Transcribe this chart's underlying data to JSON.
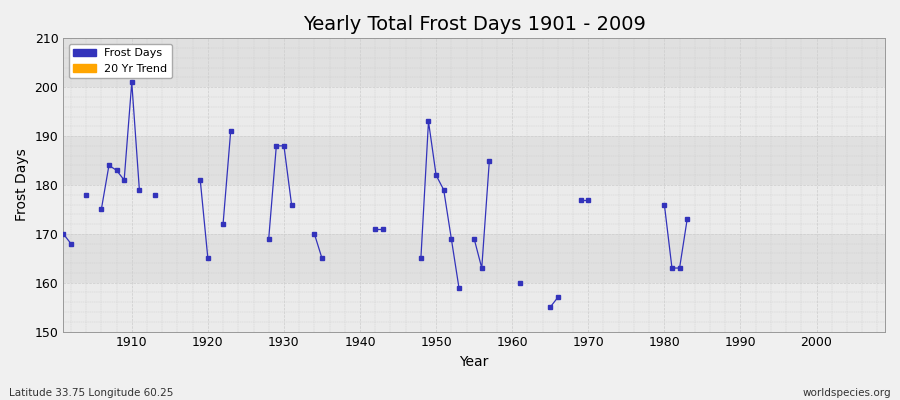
{
  "title": "Yearly Total Frost Days 1901 - 2009",
  "xlabel": "Year",
  "ylabel": "Frost Days",
  "xlim": [
    1901,
    2009
  ],
  "ylim": [
    150,
    210
  ],
  "yticks": [
    150,
    160,
    170,
    180,
    190,
    200,
    210
  ],
  "xticks": [
    1910,
    1920,
    1930,
    1940,
    1950,
    1960,
    1970,
    1980,
    1990,
    2000
  ],
  "bg_color": "#f0f0f0",
  "plot_bg_color": "#f0f0f0",
  "line_color": "#3333bb",
  "marker_color": "#3333bb",
  "trend_color": "#ffa500",
  "footer_left": "Latitude 33.75 Longitude 60.25",
  "footer_right": "worldspecies.org",
  "segments": [
    {
      "years": [
        1901,
        1902
      ],
      "values": [
        170,
        168
      ]
    },
    {
      "years": [
        1904
      ],
      "values": [
        178
      ]
    },
    {
      "years": [
        1906,
        1907,
        1908,
        1909,
        1910,
        1911
      ],
      "values": [
        175,
        184,
        183,
        181,
        201,
        179
      ]
    },
    {
      "years": [
        1913
      ],
      "values": [
        178
      ]
    },
    {
      "years": [
        1919,
        1920
      ],
      "values": [
        181,
        165
      ]
    },
    {
      "years": [
        1922,
        1923
      ],
      "values": [
        172,
        191
      ]
    },
    {
      "years": [
        1928,
        1929,
        1930,
        1931
      ],
      "values": [
        169,
        188,
        188,
        176
      ]
    },
    {
      "years": [
        1934,
        1935
      ],
      "values": [
        170,
        165
      ]
    },
    {
      "years": [
        1942,
        1943
      ],
      "values": [
        171,
        171
      ]
    },
    {
      "years": [
        1948,
        1949,
        1950,
        1951,
        1952,
        1953
      ],
      "values": [
        165,
        193,
        182,
        179,
        169,
        159
      ]
    },
    {
      "years": [
        1955,
        1956,
        1957
      ],
      "values": [
        169,
        163,
        185
      ]
    },
    {
      "years": [
        1961
      ],
      "values": [
        160
      ]
    },
    {
      "years": [
        1965,
        1966
      ],
      "values": [
        155,
        157
      ]
    },
    {
      "years": [
        1969,
        1970
      ],
      "values": [
        177,
        177
      ]
    },
    {
      "years": [
        1980,
        1981,
        1982,
        1983
      ],
      "values": [
        176,
        163,
        163,
        173
      ]
    }
  ],
  "hband_colors": [
    "#ebebeb",
    "#e0e0e0"
  ],
  "grid_color": "#cccccc",
  "tick_fontsize": 9,
  "label_fontsize": 10,
  "title_fontsize": 14
}
